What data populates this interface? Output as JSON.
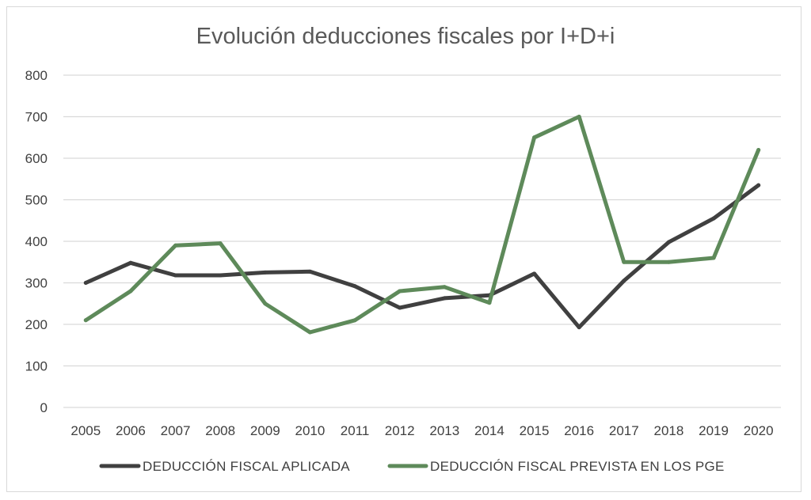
{
  "chart_data": {
    "type": "line",
    "title": "Evolución deducciones fiscales por I+D+i",
    "xlabel": "",
    "ylabel": "",
    "categories": [
      "2005",
      "2006",
      "2007",
      "2008",
      "2009",
      "2010",
      "2011",
      "2012",
      "2013",
      "2014",
      "2015",
      "2016",
      "2017",
      "2018",
      "2019",
      "2020"
    ],
    "ylim": [
      0,
      800
    ],
    "yticks": [
      0,
      100,
      200,
      300,
      400,
      500,
      600,
      700,
      800
    ],
    "grid": true,
    "legend_position": "bottom",
    "series": [
      {
        "name": "DEDUCCIÓN FISCAL APLICADA",
        "color": "#404040",
        "values": [
          300,
          348,
          318,
          318,
          325,
          327,
          292,
          240,
          263,
          270,
          322,
          193,
          305,
          398,
          455,
          535
        ]
      },
      {
        "name": "DEDUCCIÓN FISCAL PREVISTA EN LOS PGE",
        "color": "#5e8a5a",
        "values": [
          210,
          280,
          390,
          395,
          250,
          181,
          210,
          280,
          290,
          252,
          650,
          700,
          350,
          350,
          360,
          620
        ]
      }
    ]
  }
}
